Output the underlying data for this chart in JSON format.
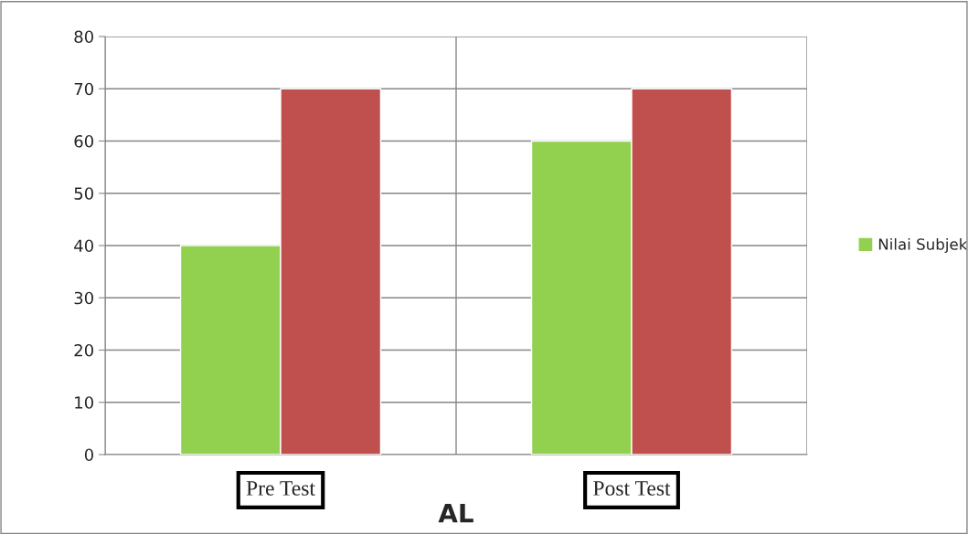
{
  "chart_data": {
    "type": "bar",
    "title": "AL",
    "categories": [
      "Pre Test",
      "Post Test"
    ],
    "series": [
      {
        "name": "Nilai Subjek",
        "color": "#92d050",
        "values": [
          40,
          60
        ]
      },
      {
        "color": "#c0504d",
        "values": [
          70,
          70
        ]
      }
    ],
    "ylim": [
      0,
      80
    ],
    "yticks": [
      0,
      10,
      20,
      30,
      40,
      50,
      60,
      70,
      80
    ],
    "grid": true,
    "legend": "right"
  }
}
